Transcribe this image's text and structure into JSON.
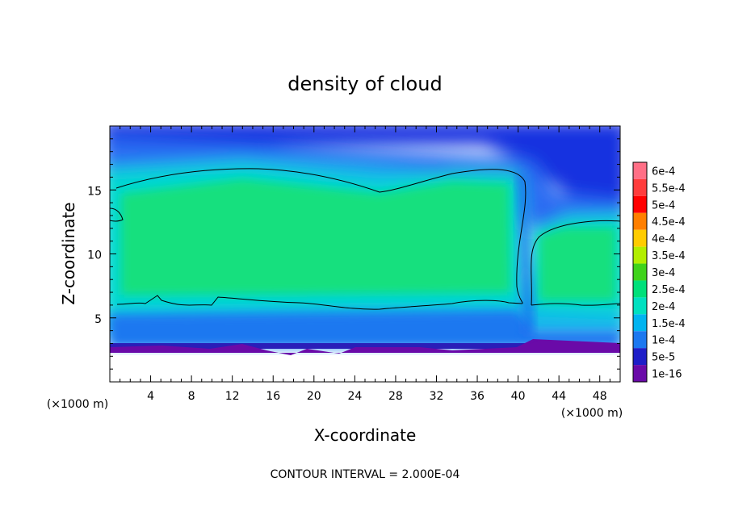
{
  "chart_data": {
    "type": "heatmap",
    "title": "density of cloud",
    "xlabel": "X-coordinate",
    "ylabel": "Z-coordinate",
    "x_unit": "(×1000 m)",
    "xlim": [
      0,
      50
    ],
    "ylim": [
      0,
      20
    ],
    "x_ticks": [
      4,
      8,
      12,
      16,
      20,
      24,
      28,
      32,
      36,
      40,
      44,
      48
    ],
    "y_ticks": [
      5,
      10,
      15
    ],
    "contour_interval_label": "CONTOUR INTERVAL = 2.000E-04",
    "colorbar": {
      "labels": [
        "6e-4",
        "5.5e-4",
        "5e-4",
        "4.5e-4",
        "4e-4",
        "3.5e-4",
        "3e-4",
        "2.5e-4",
        "2e-4",
        "1.5e-4",
        "1e-4",
        "5e-5",
        "1e-16"
      ],
      "colors": [
        "#ff6f86",
        "#ff3c3c",
        "#ff0000",
        "#ff7f00",
        "#ffcc00",
        "#b2ee00",
        "#3fd31b",
        "#00e07a",
        "#00e0c0",
        "#00b4f0",
        "#1c78f0",
        "#1e1ec8",
        "#6a0aa8"
      ]
    },
    "field_description": {
      "cloud_base_km": 3,
      "cloud_top_km": 19.5,
      "contour_2e-4_left_cell": {
        "x_range": [
          0.5,
          40.5
        ],
        "z_bottom": 6,
        "z_top": 16.5
      },
      "contour_2e-4_right_cell": {
        "x_range": [
          41,
          50
        ],
        "z_bottom": 6,
        "z_top": 12.5
      },
      "contour_2e-4_small_left": {
        "x_range": [
          0,
          1.5
        ],
        "z_range": [
          12,
          13.5
        ]
      }
    }
  }
}
